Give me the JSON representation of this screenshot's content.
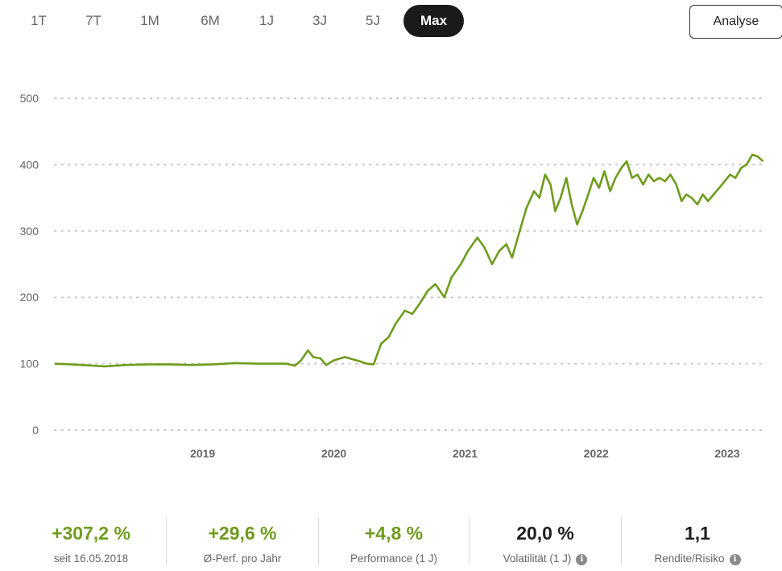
{
  "range_tabs": [
    {
      "label": "1T",
      "active": false
    },
    {
      "label": "7T",
      "active": false
    },
    {
      "label": "1M",
      "active": false
    },
    {
      "label": "6M",
      "active": false
    },
    {
      "label": "1J",
      "active": false
    },
    {
      "label": "3J",
      "active": false
    },
    {
      "label": "5J",
      "active": false
    },
    {
      "label": "Max",
      "active": true
    }
  ],
  "analyse_button": "Analyse",
  "colors": {
    "line": "#6f9c1e",
    "grid": "#c8c8c8",
    "axis_text": "#666666",
    "active_tab": "#1a1a1a"
  },
  "chart_data": {
    "type": "line",
    "y_ticks": [
      "0",
      "100",
      "200",
      "300",
      "400",
      "500"
    ],
    "ylim": [
      0,
      500
    ],
    "x_ticks": [
      "2019",
      "2020",
      "2021",
      "2022",
      "2023"
    ],
    "xlim": [
      "2018-05-16",
      "2023-10-20"
    ],
    "grid": "horizontal dotted",
    "series": [
      {
        "points": [
          [
            "2018-05-16",
            100
          ],
          [
            "2018-07-01",
            99
          ],
          [
            "2018-09-01",
            97
          ],
          [
            "2018-10-01",
            96
          ],
          [
            "2018-12-01",
            98
          ],
          [
            "2019-02-01",
            99
          ],
          [
            "2019-04-01",
            99
          ],
          [
            "2019-06-01",
            98
          ],
          [
            "2019-08-01",
            99
          ],
          [
            "2019-10-01",
            101
          ],
          [
            "2019-12-01",
            100
          ],
          [
            "2020-01-15",
            100
          ],
          [
            "2020-02-20",
            100
          ],
          [
            "2020-03-15",
            97
          ],
          [
            "2020-04-01",
            105
          ],
          [
            "2020-04-20",
            120
          ],
          [
            "2020-05-05",
            110
          ],
          [
            "2020-05-25",
            108
          ],
          [
            "2020-06-10",
            98
          ],
          [
            "2020-07-01",
            105
          ],
          [
            "2020-08-01",
            110
          ],
          [
            "2020-08-20",
            107
          ],
          [
            "2020-09-15",
            103
          ],
          [
            "2020-10-01",
            100
          ],
          [
            "2020-10-20",
            99
          ],
          [
            "2020-11-10",
            130
          ],
          [
            "2020-12-01",
            140
          ],
          [
            "2020-12-20",
            160
          ],
          [
            "2021-01-15",
            180
          ],
          [
            "2021-02-05",
            175
          ],
          [
            "2021-02-25",
            190
          ],
          [
            "2021-03-20",
            210
          ],
          [
            "2021-04-10",
            220
          ],
          [
            "2021-05-05",
            200
          ],
          [
            "2021-05-25",
            230
          ],
          [
            "2021-06-20",
            250
          ],
          [
            "2021-07-10",
            270
          ],
          [
            "2021-08-05",
            290
          ],
          [
            "2021-08-25",
            275
          ],
          [
            "2021-09-15",
            250
          ],
          [
            "2021-10-05",
            270
          ],
          [
            "2021-10-25",
            280
          ],
          [
            "2021-11-10",
            260
          ],
          [
            "2021-12-01",
            300
          ],
          [
            "2021-12-20",
            335
          ],
          [
            "2022-01-10",
            360
          ],
          [
            "2022-01-25",
            350
          ],
          [
            "2022-02-10",
            385
          ],
          [
            "2022-02-25",
            370
          ],
          [
            "2022-03-10",
            330
          ],
          [
            "2022-03-25",
            350
          ],
          [
            "2022-04-10",
            380
          ],
          [
            "2022-04-25",
            340
          ],
          [
            "2022-05-10",
            310
          ],
          [
            "2022-05-25",
            330
          ],
          [
            "2022-06-10",
            355
          ],
          [
            "2022-06-25",
            380
          ],
          [
            "2022-07-10",
            365
          ],
          [
            "2022-07-25",
            390
          ],
          [
            "2022-08-10",
            360
          ],
          [
            "2022-08-25",
            380
          ],
          [
            "2022-09-10",
            395
          ],
          [
            "2022-09-25",
            405
          ],
          [
            "2022-10-10",
            380
          ],
          [
            "2022-10-25",
            385
          ],
          [
            "2022-11-10",
            370
          ],
          [
            "2022-11-25",
            385
          ],
          [
            "2022-12-10",
            375
          ],
          [
            "2022-12-25",
            380
          ],
          [
            "2023-01-10",
            375
          ],
          [
            "2023-01-25",
            385
          ],
          [
            "2023-02-10",
            370
          ],
          [
            "2023-02-25",
            345
          ],
          [
            "2023-03-10",
            355
          ],
          [
            "2023-03-25",
            350
          ],
          [
            "2023-04-10",
            340
          ],
          [
            "2023-04-25",
            355
          ],
          [
            "2023-05-10",
            345
          ],
          [
            "2023-05-25",
            355
          ],
          [
            "2023-06-10",
            365
          ],
          [
            "2023-06-25",
            375
          ],
          [
            "2023-07-10",
            385
          ],
          [
            "2023-07-25",
            380
          ],
          [
            "2023-08-10",
            395
          ],
          [
            "2023-08-25",
            400
          ],
          [
            "2023-09-10",
            415
          ],
          [
            "2023-09-25",
            412
          ],
          [
            "2023-10-10",
            405
          ]
        ]
      }
    ]
  },
  "stats": [
    {
      "value": "+307,2 %",
      "label": "seit 16.05.2018",
      "tone": "green",
      "info": false
    },
    {
      "value": "+29,6 %",
      "label": "Ø-Perf. pro Jahr",
      "tone": "green",
      "info": false
    },
    {
      "value": "+4,8 %",
      "label": "Performance (1 J)",
      "tone": "green",
      "info": false
    },
    {
      "value": "20,0 %",
      "label": "Volatilität (1 J)",
      "tone": "dark",
      "info": true
    },
    {
      "value": "1,1",
      "label": "Rendite/Risiko",
      "tone": "dark",
      "info": true
    }
  ],
  "info_glyph": "i"
}
